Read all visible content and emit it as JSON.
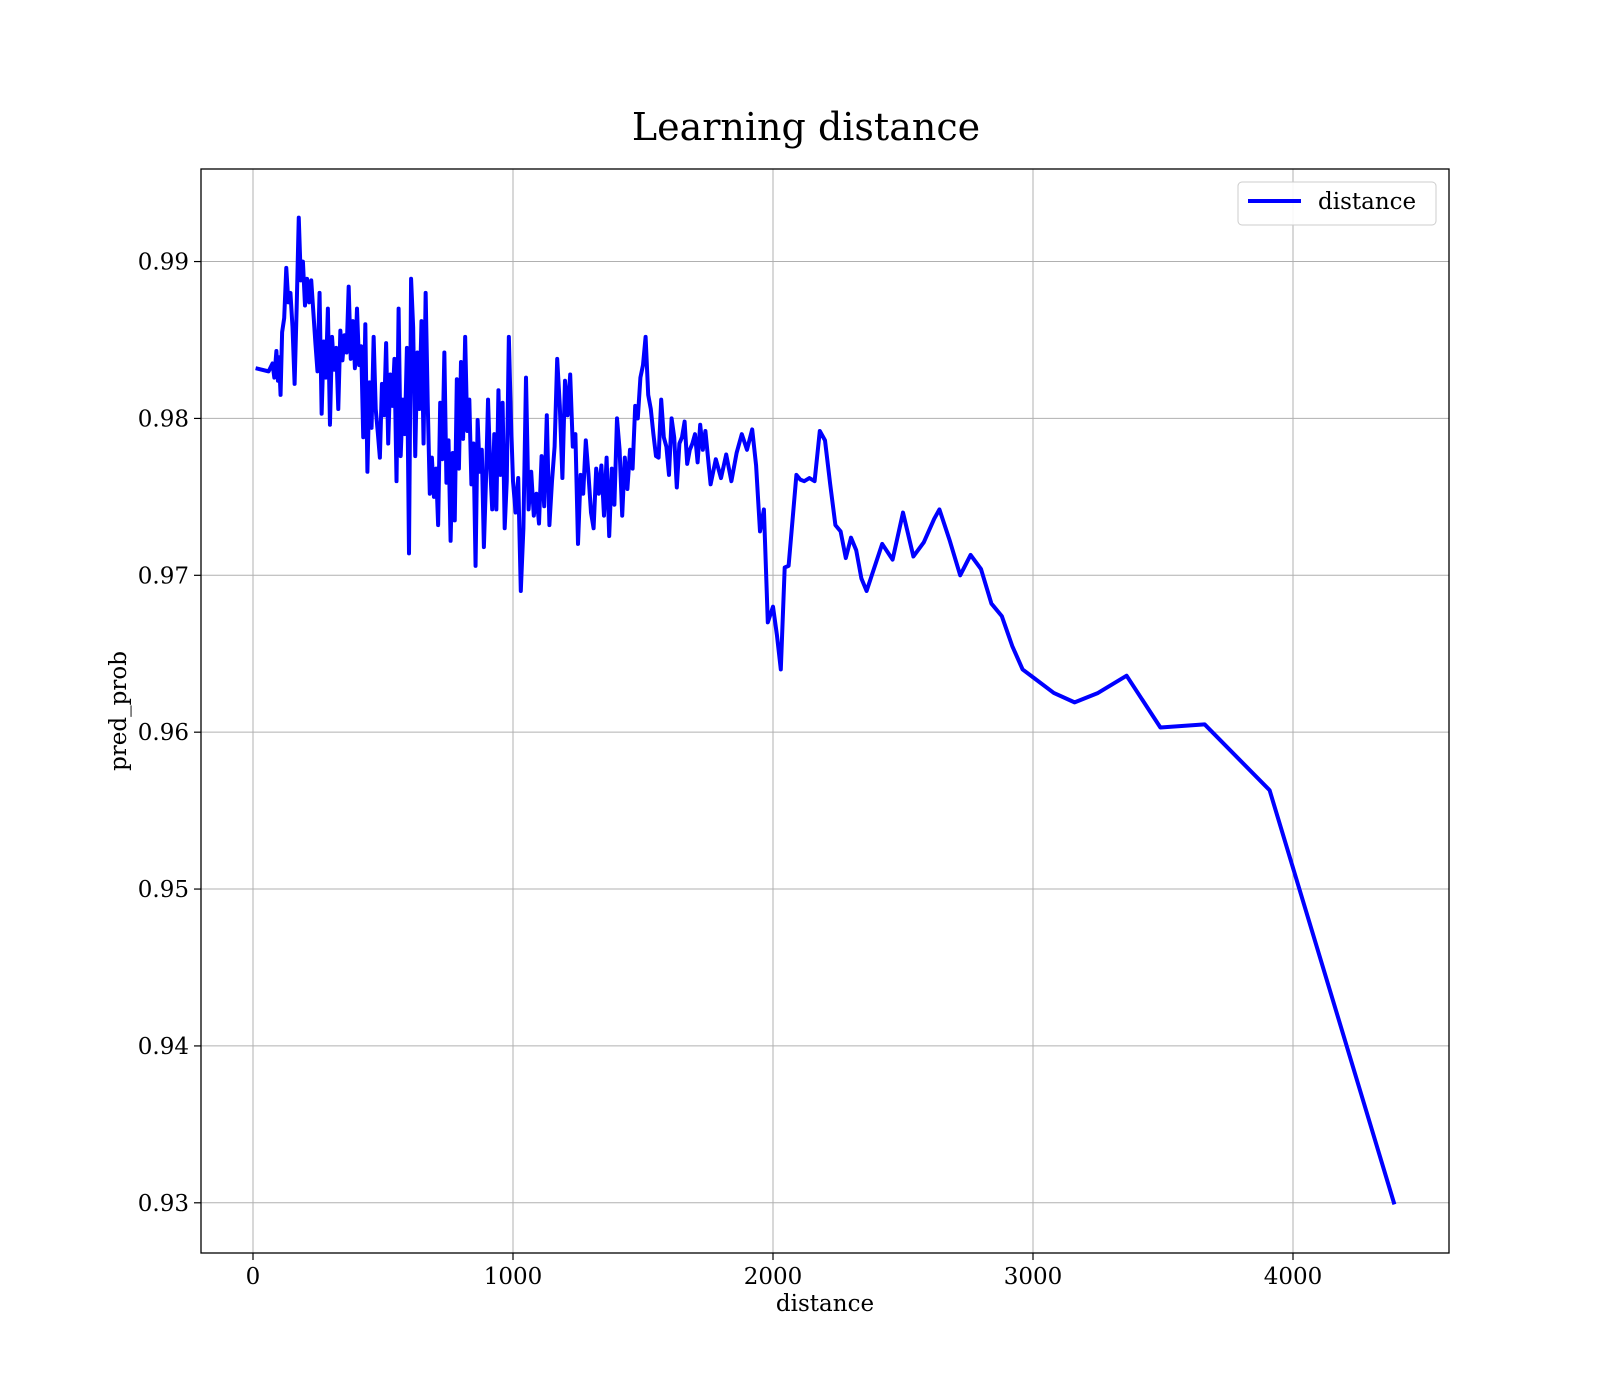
{
  "chart_data": {
    "type": "line",
    "title": "Learning distance",
    "xlabel": "distance",
    "ylabel": "pred_prob",
    "xlim": [
      -200,
      4600
    ],
    "ylim": [
      0.9268,
      0.9959
    ],
    "xticks": [
      0,
      1000,
      2000,
      3000,
      4000
    ],
    "xtick_labels": [
      "0",
      "1000",
      "2000",
      "3000",
      "4000"
    ],
    "yticks": [
      0.93,
      0.94,
      0.95,
      0.96,
      0.97,
      0.98,
      0.99
    ],
    "ytick_labels": [
      "0.93",
      "0.94",
      "0.95",
      "0.96",
      "0.97",
      "0.98",
      "0.99"
    ],
    "grid": true,
    "legend_position": "top-right",
    "series": [
      {
        "name": "distance",
        "color": "#0000ff",
        "x": [
          10,
          60,
          75,
          82,
          90,
          96,
          100,
          106,
          112,
          120,
          128,
          136,
          144,
          152,
          160,
          168,
          176,
          184,
          192,
          200,
          208,
          216,
          224,
          232,
          240,
          248,
          256,
          264,
          272,
          280,
          288,
          296,
          304,
          312,
          320,
          328,
          336,
          344,
          352,
          360,
          368,
          376,
          384,
          392,
          400,
          408,
          416,
          424,
          432,
          440,
          448,
          456,
          464,
          472,
          480,
          488,
          496,
          504,
          512,
          520,
          528,
          536,
          544,
          552,
          560,
          568,
          576,
          584,
          592,
          600,
          608,
          616,
          624,
          632,
          640,
          648,
          656,
          664,
          672,
          680,
          688,
          696,
          704,
          712,
          720,
          728,
          736,
          744,
          752,
          760,
          768,
          776,
          784,
          792,
          800,
          808,
          816,
          824,
          832,
          840,
          848,
          856,
          864,
          872,
          880,
          888,
          896,
          904,
          912,
          920,
          928,
          936,
          944,
          952,
          960,
          968,
          976,
          984,
          992,
          1000,
          1010,
          1020,
          1030,
          1040,
          1050,
          1060,
          1070,
          1080,
          1090,
          1100,
          1110,
          1120,
          1130,
          1140,
          1150,
          1160,
          1170,
          1180,
          1190,
          1200,
          1210,
          1220,
          1230,
          1240,
          1250,
          1260,
          1270,
          1280,
          1290,
          1300,
          1310,
          1320,
          1330,
          1340,
          1350,
          1360,
          1370,
          1380,
          1390,
          1400,
          1410,
          1420,
          1430,
          1440,
          1450,
          1460,
          1470,
          1480,
          1490,
          1500,
          1510,
          1520,
          1530,
          1540,
          1550,
          1560,
          1570,
          1580,
          1590,
          1600,
          1610,
          1620,
          1630,
          1640,
          1650,
          1660,
          1670,
          1680,
          1690,
          1700,
          1710,
          1720,
          1730,
          1740,
          1760,
          1780,
          1800,
          1820,
          1840,
          1860,
          1880,
          1900,
          1920,
          1935,
          1950,
          1965,
          1980,
          2000,
          2015,
          2030,
          2045,
          2060,
          2075,
          2090,
          2105,
          2120,
          2140,
          2160,
          2180,
          2200,
          2220,
          2240,
          2260,
          2280,
          2300,
          2320,
          2340,
          2360,
          2380,
          2420,
          2460,
          2500,
          2540,
          2580,
          2620,
          2640,
          2680,
          2720,
          2760,
          2800,
          2840,
          2880,
          2920,
          2960,
          3000,
          3080,
          3160,
          3250,
          3360,
          3490,
          3660,
          3910,
          4390
        ],
        "y": [
          0.9832,
          0.983,
          0.9835,
          0.9826,
          0.9843,
          0.9824,
          0.9839,
          0.9815,
          0.9855,
          0.9864,
          0.9896,
          0.9874,
          0.988,
          0.9858,
          0.9822,
          0.9871,
          0.9928,
          0.9888,
          0.99,
          0.9872,
          0.9889,
          0.9874,
          0.9888,
          0.9868,
          0.9848,
          0.983,
          0.988,
          0.9803,
          0.9849,
          0.9826,
          0.987,
          0.9796,
          0.9852,
          0.9831,
          0.9845,
          0.9806,
          0.9856,
          0.9837,
          0.9853,
          0.9842,
          0.9884,
          0.9838,
          0.9862,
          0.9832,
          0.987,
          0.9834,
          0.9846,
          0.9788,
          0.986,
          0.9766,
          0.9823,
          0.9794,
          0.9852,
          0.9806,
          0.9791,
          0.9775,
          0.9822,
          0.9802,
          0.9848,
          0.9784,
          0.9828,
          0.9808,
          0.9838,
          0.976,
          0.987,
          0.9776,
          0.9812,
          0.979,
          0.9845,
          0.9714,
          0.9889,
          0.9858,
          0.9776,
          0.9842,
          0.9806,
          0.9862,
          0.9784,
          0.988,
          0.981,
          0.9752,
          0.9775,
          0.975,
          0.9768,
          0.9732,
          0.981,
          0.9774,
          0.9842,
          0.9759,
          0.9786,
          0.9722,
          0.9778,
          0.9735,
          0.9825,
          0.9768,
          0.9836,
          0.9787,
          0.9852,
          0.9792,
          0.9812,
          0.9758,
          0.9784,
          0.9706,
          0.9799,
          0.9766,
          0.978,
          0.9718,
          0.976,
          0.9812,
          0.977,
          0.9742,
          0.979,
          0.9742,
          0.9818,
          0.9764,
          0.981,
          0.973,
          0.976,
          0.9852,
          0.98,
          0.976,
          0.974,
          0.9762,
          0.969,
          0.973,
          0.9826,
          0.9742,
          0.9766,
          0.9738,
          0.9752,
          0.9733,
          0.9776,
          0.9744,
          0.9802,
          0.9732,
          0.976,
          0.9782,
          0.9838,
          0.9808,
          0.9762,
          0.9824,
          0.9802,
          0.9828,
          0.9782,
          0.979,
          0.972,
          0.9764,
          0.9752,
          0.9786,
          0.9765,
          0.974,
          0.973,
          0.9768,
          0.9752,
          0.977,
          0.9738,
          0.9775,
          0.9725,
          0.9768,
          0.9745,
          0.98,
          0.978,
          0.9738,
          0.9775,
          0.9755,
          0.978,
          0.9768,
          0.9808,
          0.98,
          0.9826,
          0.9834,
          0.9852,
          0.9815,
          0.9806,
          0.979,
          0.9776,
          0.9775,
          0.9812,
          0.9788,
          0.9782,
          0.9764,
          0.98,
          0.9788,
          0.9756,
          0.9784,
          0.9788,
          0.9798,
          0.9771,
          0.978,
          0.9784,
          0.979,
          0.9772,
          0.9796,
          0.978,
          0.9792,
          0.9758,
          0.9774,
          0.9762,
          0.9777,
          0.976,
          0.9778,
          0.979,
          0.978,
          0.9793,
          0.977,
          0.9728,
          0.9742,
          0.967,
          0.968,
          0.9662,
          0.964,
          0.9705,
          0.9706,
          0.9735,
          0.9764,
          0.9761,
          0.976,
          0.9762,
          0.976,
          0.9792,
          0.9786,
          0.9758,
          0.9732,
          0.9728,
          0.9711,
          0.9724,
          0.9716,
          0.9698,
          0.969,
          0.97,
          0.972,
          0.971,
          0.974,
          0.9712,
          0.9721,
          0.9736,
          0.9742,
          0.9722,
          0.97,
          0.9713,
          0.9704,
          0.9682,
          0.9674,
          0.9655,
          0.964,
          0.9635,
          0.9625,
          0.9619,
          0.9625,
          0.9636,
          0.9603,
          0.9605,
          0.9563,
          0.9299
        ]
      }
    ]
  }
}
